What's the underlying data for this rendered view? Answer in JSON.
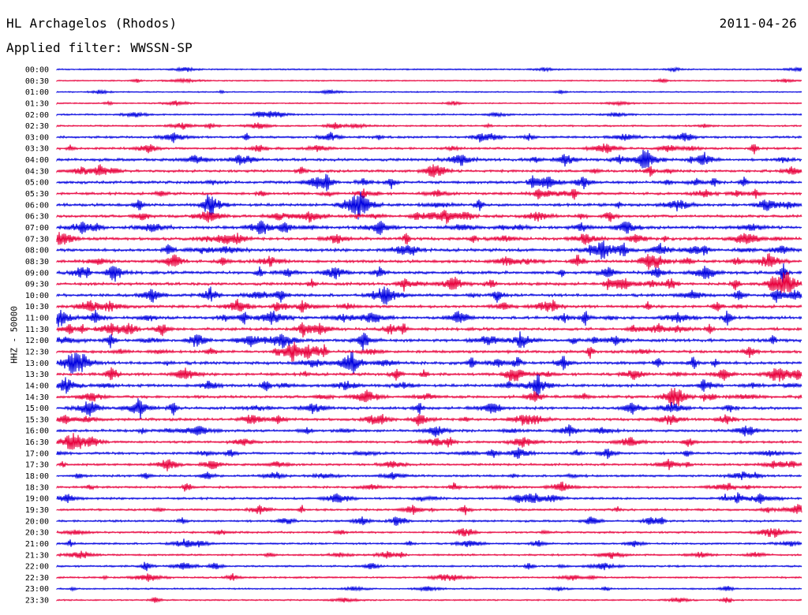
{
  "header": {
    "station": "HL Archagelos (Rhodos)",
    "date": "2011-04-26",
    "filter": "Applied filter: WWSSN-SP"
  },
  "axis": {
    "channel_label": "HHZ - 50000"
  },
  "colors": {
    "trace_a": "#0000e0",
    "trace_b": "#e8003c"
  },
  "chart_data": {
    "type": "line",
    "title": "HL Archagelos (Rhodos)",
    "subtitle": "Applied filter: WWSSN-SP",
    "ylabel": "HHZ - 50000",
    "row_labels": [
      "00:00",
      "00:30",
      "01:00",
      "01:30",
      "02:00",
      "02:30",
      "03:00",
      "03:30",
      "04:00",
      "04:30",
      "05:00",
      "05:30",
      "06:00",
      "06:30",
      "07:00",
      "07:30",
      "08:00",
      "08:30",
      "09:00",
      "09:30",
      "10:00",
      "10:30",
      "11:00",
      "11:30",
      "12:00",
      "12:30",
      "13:00",
      "13:30",
      "14:00",
      "14:30",
      "15:00",
      "15:30",
      "16:00",
      "16:30",
      "17:00",
      "17:30",
      "18:00",
      "18:30",
      "19:00",
      "19:30",
      "20:00",
      "20:30",
      "21:00",
      "21:30",
      "22:00",
      "22:30",
      "23:00",
      "23:30"
    ],
    "row_activity": [
      0.15,
      0.12,
      0.12,
      0.12,
      0.25,
      0.35,
      0.55,
      0.6,
      0.85,
      0.7,
      0.8,
      0.75,
      0.85,
      0.8,
      0.9,
      0.9,
      0.95,
      0.85,
      0.9,
      0.9,
      0.85,
      0.85,
      0.9,
      0.85,
      0.95,
      0.8,
      0.95,
      0.85,
      0.85,
      0.8,
      0.8,
      0.75,
      0.7,
      0.6,
      0.65,
      0.6,
      0.55,
      0.55,
      0.55,
      0.5,
      0.5,
      0.45,
      0.4,
      0.4,
      0.4,
      0.35,
      0.25,
      0.2
    ],
    "series_colors": [
      "blue",
      "red"
    ],
    "grid": false
  }
}
